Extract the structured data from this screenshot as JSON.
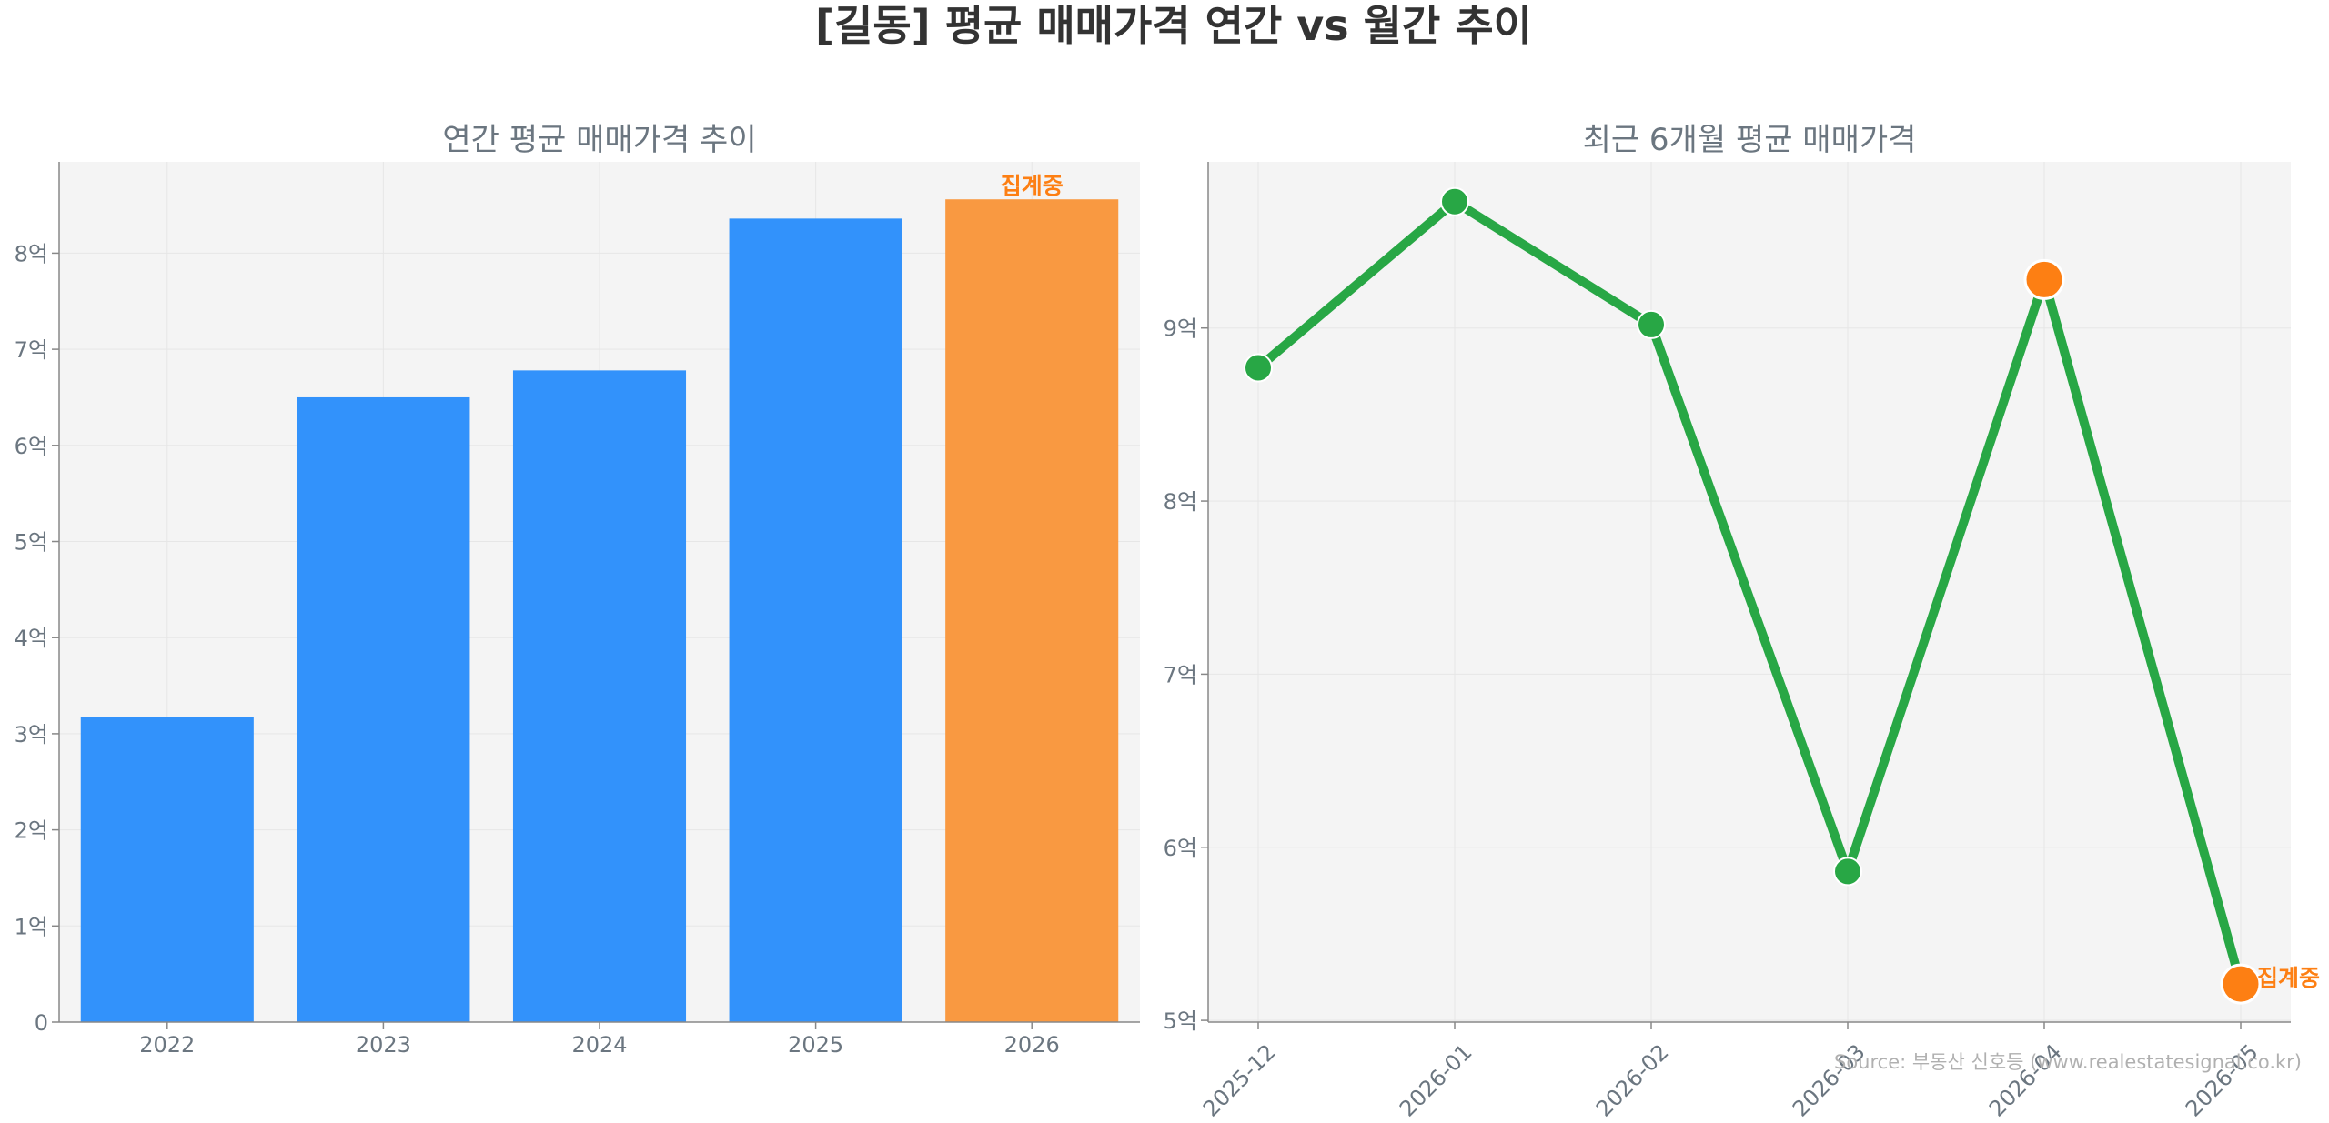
{
  "figure_title": "[길동] 평균 매매가격 연간 vs 월간 추이",
  "source_text": "Source: 부동산 신호등 (www.realestatesignal.co.kr)",
  "colors": {
    "bar": "#3292fb",
    "bar_partial": "#f99941",
    "line": "#28a745",
    "highlight": "#fd7f13",
    "panel_bg": "#f4f4f4",
    "grid": "#e6e6e6",
    "axis": "#888888"
  },
  "chart_data": [
    {
      "type": "bar",
      "title": "연간 평균 매매가격 추이",
      "categories": [
        "2022",
        "2023",
        "2024",
        "2025",
        "2026"
      ],
      "values": [
        3.17,
        6.5,
        6.78,
        8.36,
        8.56
      ],
      "unit": "억",
      "ylim": [
        0,
        8.95
      ],
      "yticks": [
        0,
        1,
        2,
        3,
        4,
        5,
        6,
        7,
        8
      ],
      "ytick_labels": [
        "0",
        "1억",
        "2억",
        "3억",
        "4억",
        "5억",
        "6억",
        "7억",
        "8억"
      ],
      "highlight_index": 4,
      "highlight_label": "집계중",
      "grid": true
    },
    {
      "type": "line",
      "title": "최근 6개월 평균 매매가격",
      "categories": [
        "2025-12",
        "2026-01",
        "2026-02",
        "2026-03",
        "2026-04",
        "2026-05"
      ],
      "values": [
        8.77,
        9.73,
        9.02,
        5.86,
        9.28,
        5.21
      ],
      "unit": "억",
      "ylim": [
        4.99,
        9.96
      ],
      "yticks": [
        5,
        6,
        7,
        8,
        9
      ],
      "ytick_labels": [
        "5억",
        "6억",
        "7억",
        "8억",
        "9억"
      ],
      "highlight_indices": [
        4,
        5
      ],
      "highlight_label": "집계중",
      "highlight_label_index": 5,
      "grid": true
    }
  ]
}
